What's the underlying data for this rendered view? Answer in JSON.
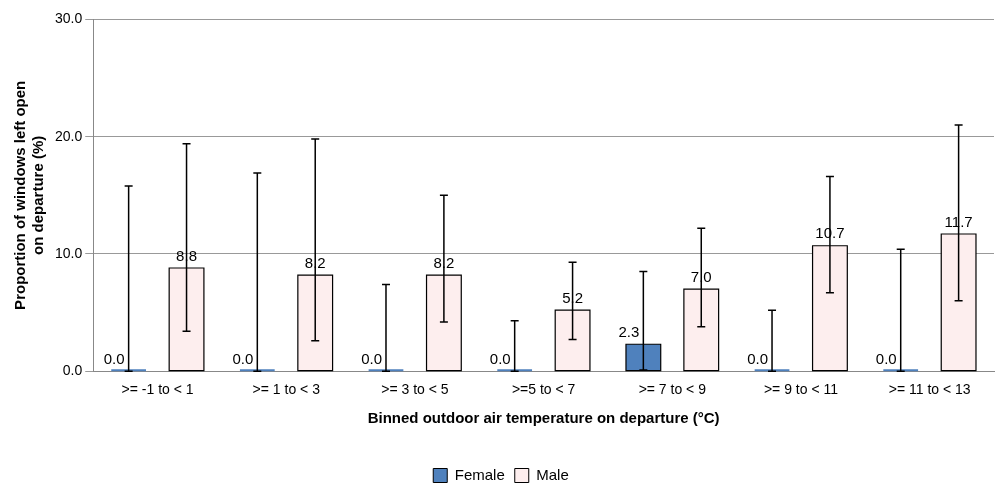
{
  "chart_data": {
    "type": "bar",
    "xlabel": "Binned outdoor air temperature on departure (°C)",
    "ylabel": "Proportion of windows left open on departure (%)",
    "categories": [
      ">= -1 to < 1",
      ">= 1 to < 3",
      ">= 3 to < 5",
      ">=5 to < 7",
      ">= 7 to < 9",
      ">= 9 to < 11",
      ">= 11 to < 13"
    ],
    "series": [
      {
        "name": "Female",
        "color": "#4f81bd",
        "values": [
          0,
          0,
          0,
          0,
          2.3,
          0,
          0
        ],
        "value_labels": [
          "0.0",
          "0.0",
          "0.0",
          "0.0",
          "2.3",
          "0.0",
          "0.0"
        ],
        "errors": [
          [
            0,
            15.8
          ],
          [
            0,
            16.9
          ],
          [
            0,
            7.4
          ],
          [
            0,
            4.3
          ],
          [
            0.1,
            8.5
          ],
          [
            0,
            5.2
          ],
          [
            0,
            10.4
          ]
        ]
      },
      {
        "name": "Male",
        "color": "#fdeeee",
        "values": [
          8.8,
          8.2,
          8.2,
          5.2,
          7.0,
          10.7,
          11.7
        ],
        "value_labels": [
          "8.8",
          "8.2",
          "8.2",
          "5.2",
          "7.0",
          "10.7",
          "11.7"
        ],
        "errors": [
          [
            3.4,
            19.4
          ],
          [
            2.6,
            19.8
          ],
          [
            4.2,
            15.0
          ],
          [
            2.7,
            9.3
          ],
          [
            3.8,
            12.2
          ],
          [
            6.7,
            16.6
          ],
          [
            6.0,
            21.0
          ]
        ]
      }
    ],
    "ylim": [
      0,
      30
    ],
    "yticks": [
      {
        "value": 0,
        "label": "0.0"
      },
      {
        "value": 10,
        "label": "10.0"
      },
      {
        "value": 20,
        "label": "20.0"
      },
      {
        "value": 30,
        "label": "30.0"
      }
    ],
    "grid": "y",
    "legend": "bottom"
  }
}
